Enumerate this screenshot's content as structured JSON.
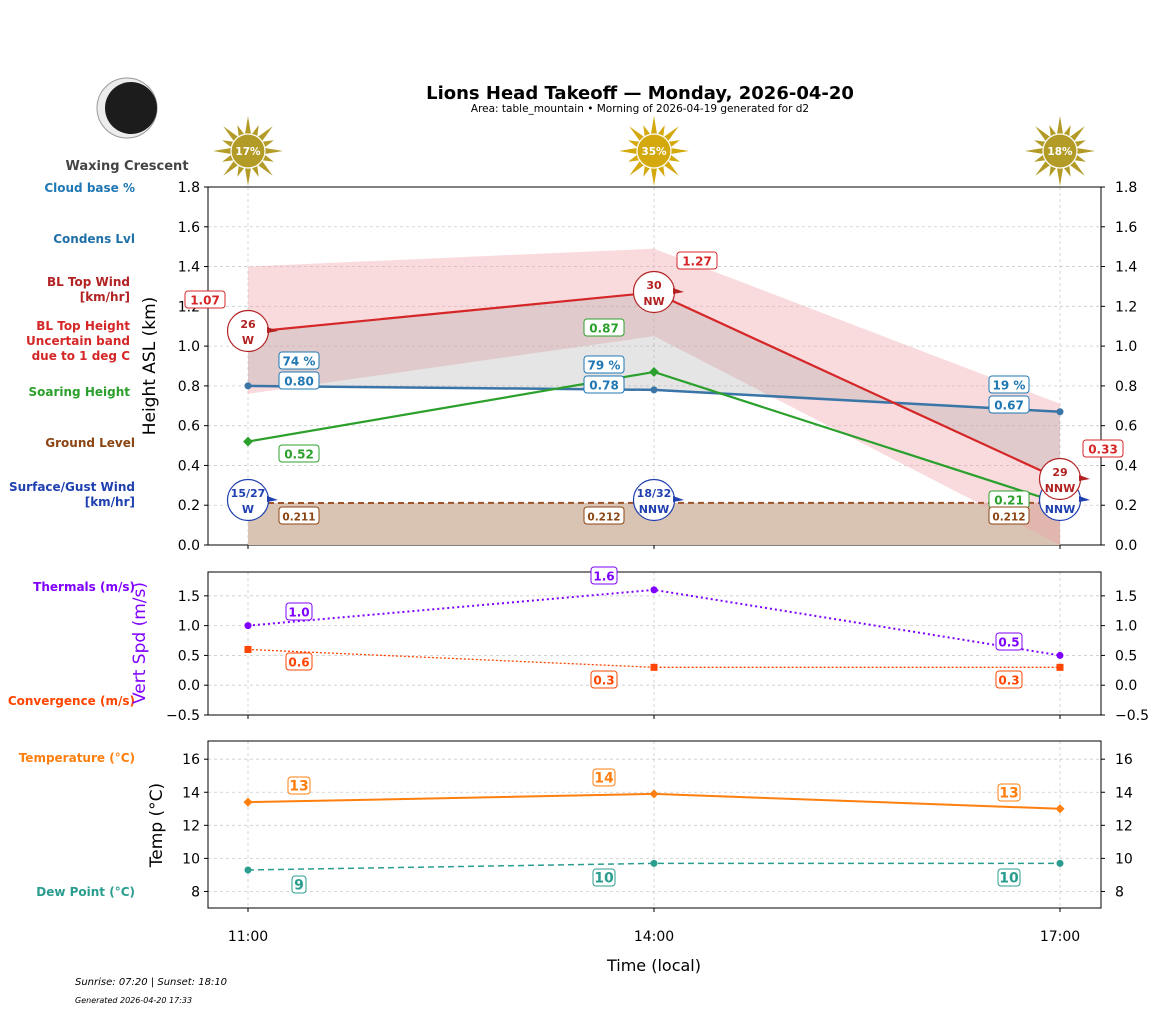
{
  "header": {
    "title": "Lions Head Takeoff — Monday, 2026-04-20",
    "subtitle": "Area: table_mountain • Morning of 2026-04-19 generated for d2",
    "moon_phase": "Waxing Crescent",
    "moon_icon": "waxing-crescent-moon-icon"
  },
  "footer": {
    "sun_times": "Sunrise: 07:20 | Sunset: 18:10",
    "generated": "Generated 2026-04-20 17:33"
  },
  "side_labels": {
    "cloud_base": "Cloud base %",
    "condens": "Condens Lvl",
    "bl_wind": [
      "BL Top Wind",
      "[km/hr]"
    ],
    "bl_height": [
      "BL Top Height",
      "Uncertain band",
      "due to 1 deg C"
    ],
    "soaring": "Soaring Height",
    "ground": "Ground Level",
    "surface_wind": [
      "Surface/Gust Wind",
      "[km/hr]"
    ],
    "thermals": "Thermals (m/s)",
    "convergence": "Convergence (m/s)",
    "temperature": "Temperature (°C)",
    "dew": "Dew Point (°C)"
  },
  "colors": {
    "cloud": "#1f77b4",
    "condens": "#3a75a8",
    "bl_wind": "#b22222",
    "bl_top": "#d62728",
    "soaring": "#2ca02c",
    "ground": "#a0522d",
    "surface_wind": "#2040b0",
    "thermals": "#7f00ff",
    "convergence": "#ff4500",
    "temperature": "#ff7f0e",
    "dew": "#2a9d8f",
    "sun": "#c9a622"
  },
  "chart_data": [
    {
      "type": "line",
      "ylabel": "Height ASL (km)",
      "ylim": [
        0,
        1.8
      ],
      "yticks": [
        "0.0",
        "0.2",
        "0.4",
        "0.6",
        "0.8",
        "1.0",
        "1.2",
        "1.4",
        "1.6",
        "1.8"
      ],
      "x": [
        "11:00",
        "14:00",
        "17:00"
      ],
      "sun_percent": [
        "17%",
        "35%",
        "18%"
      ],
      "grid": true,
      "series": {
        "bl_top_height": {
          "values": [
            1.07,
            1.27,
            0.33
          ],
          "labels": [
            "1.07",
            "1.27",
            "0.33"
          ]
        },
        "bl_uncertain_band": {
          "lower": [
            0.76,
            1.05,
            0.0
          ],
          "upper": [
            1.4,
            1.49,
            0.71
          ]
        },
        "condens_level": {
          "values": [
            0.8,
            0.78,
            0.67
          ],
          "labels": [
            "0.80",
            "0.78",
            "0.67"
          ]
        },
        "cloud_base_pct": {
          "labels": [
            "74 %",
            "79 %",
            "19 %"
          ]
        },
        "soaring_height": {
          "values": [
            0.52,
            0.87,
            0.21
          ],
          "labels": [
            "0.52",
            "0.87",
            "0.21"
          ]
        },
        "ground_level": {
          "values": [
            0.211,
            0.212,
            0.212
          ],
          "labels": [
            "0.211",
            "0.212",
            "0.212"
          ]
        },
        "bl_top_wind": {
          "speed": [
            "26",
            "30",
            "29"
          ],
          "dir": [
            "W",
            "NW",
            "NNW"
          ]
        },
        "surface_wind": {
          "speed": [
            "15/27",
            "18/32",
            ""
          ],
          "dir": [
            "W",
            "NNW",
            "NNW"
          ]
        }
      }
    },
    {
      "type": "line",
      "ylabel": "Vert Spd (m/s)",
      "ylim": [
        -0.5,
        1.9
      ],
      "yticks": [
        "−0.5",
        "0.0",
        "0.5",
        "1.0",
        "1.5"
      ],
      "x": [
        "11:00",
        "14:00",
        "17:00"
      ],
      "grid": true,
      "series": {
        "thermals": {
          "values": [
            1.0,
            1.6,
            0.5
          ],
          "labels": [
            "1.0",
            "1.6",
            "0.5"
          ]
        },
        "convergence": {
          "values": [
            0.6,
            0.3,
            0.3
          ],
          "labels": [
            "0.6",
            "0.3",
            "0.3"
          ]
        }
      }
    },
    {
      "type": "line",
      "ylabel": "Temp (°C)",
      "xlabel": "Time (local)",
      "ylim": [
        7,
        17.1
      ],
      "yticks": [
        "8",
        "10",
        "12",
        "14",
        "16"
      ],
      "x": [
        "11:00",
        "14:00",
        "17:00"
      ],
      "grid": true,
      "series": {
        "temperature": {
          "values": [
            13.4,
            13.9,
            13.0
          ],
          "labels": [
            "13",
            "14",
            "13"
          ]
        },
        "dew_point": {
          "values": [
            9.3,
            9.7,
            9.7
          ],
          "labels": [
            "9",
            "10",
            "10"
          ]
        }
      }
    }
  ]
}
